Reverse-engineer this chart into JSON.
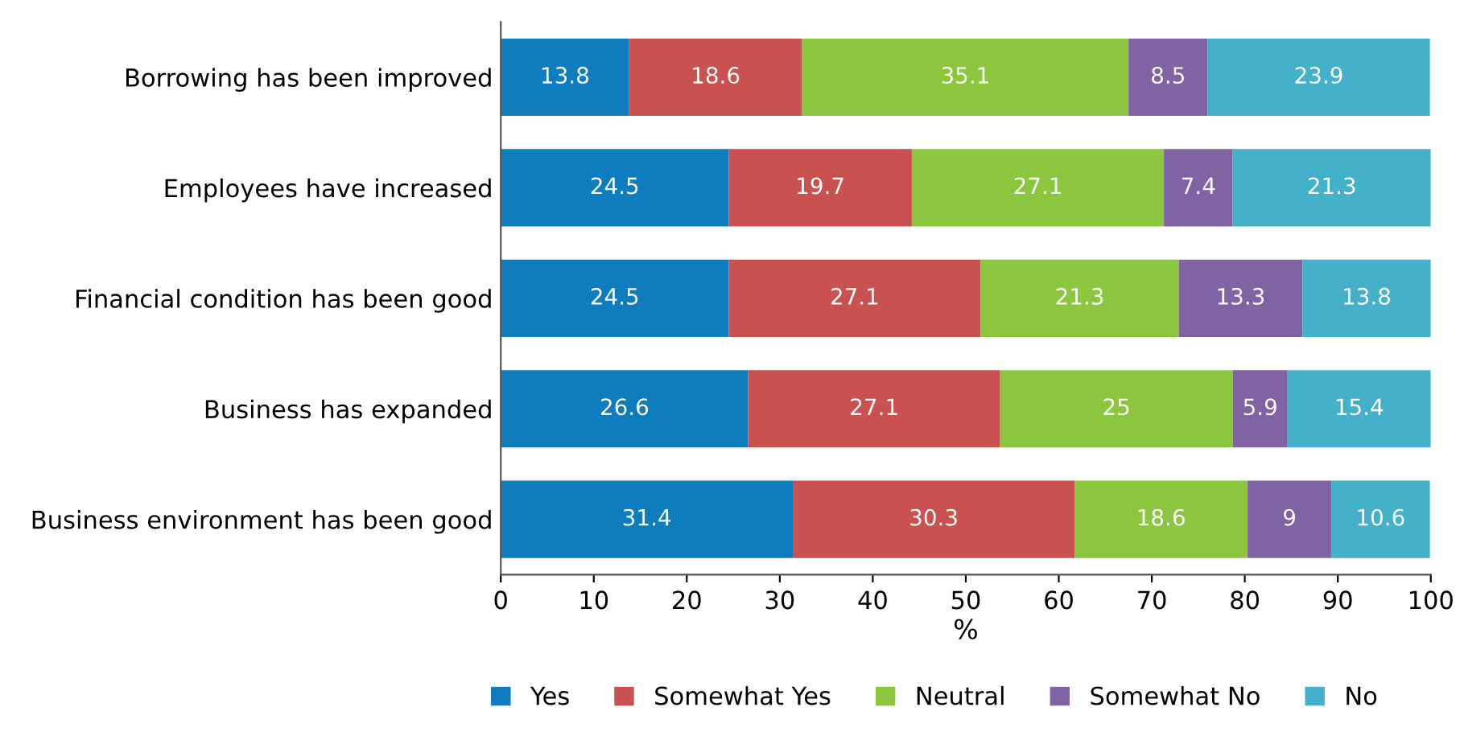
{
  "chart_data": {
    "type": "bar",
    "orientation": "horizontal",
    "stacked": true,
    "xlabel": "%",
    "categories": [
      "Borrowing has been improved",
      "Employees have increased",
      "Financial condition has been good",
      "Business has expanded",
      "Business environment has been good"
    ],
    "series": [
      {
        "name": "Yes",
        "color": "#0f7cbd",
        "values": [
          13.8,
          24.5,
          24.5,
          26.6,
          31.4
        ]
      },
      {
        "name": "Somewhat Yes",
        "color": "#c9514f",
        "values": [
          18.6,
          19.7,
          27.1,
          27.1,
          30.3
        ]
      },
      {
        "name": "Neutral",
        "color": "#8cc63e",
        "values": [
          35.1,
          27.1,
          21.3,
          25,
          18.6
        ]
      },
      {
        "name": "Somewhat No",
        "color": "#7f63a2",
        "values": [
          8.5,
          7.4,
          13.3,
          5.9,
          9
        ]
      },
      {
        "name": "No",
        "color": "#45b0ca",
        "values": [
          23.9,
          21.3,
          13.8,
          15.4,
          10.6
        ]
      }
    ],
    "xlim": [
      0,
      100
    ],
    "xticks": [
      0,
      10,
      20,
      30,
      40,
      50,
      60,
      70,
      80,
      90,
      100
    ],
    "data_labels": true,
    "legend": "bottom",
    "grid": false
  }
}
